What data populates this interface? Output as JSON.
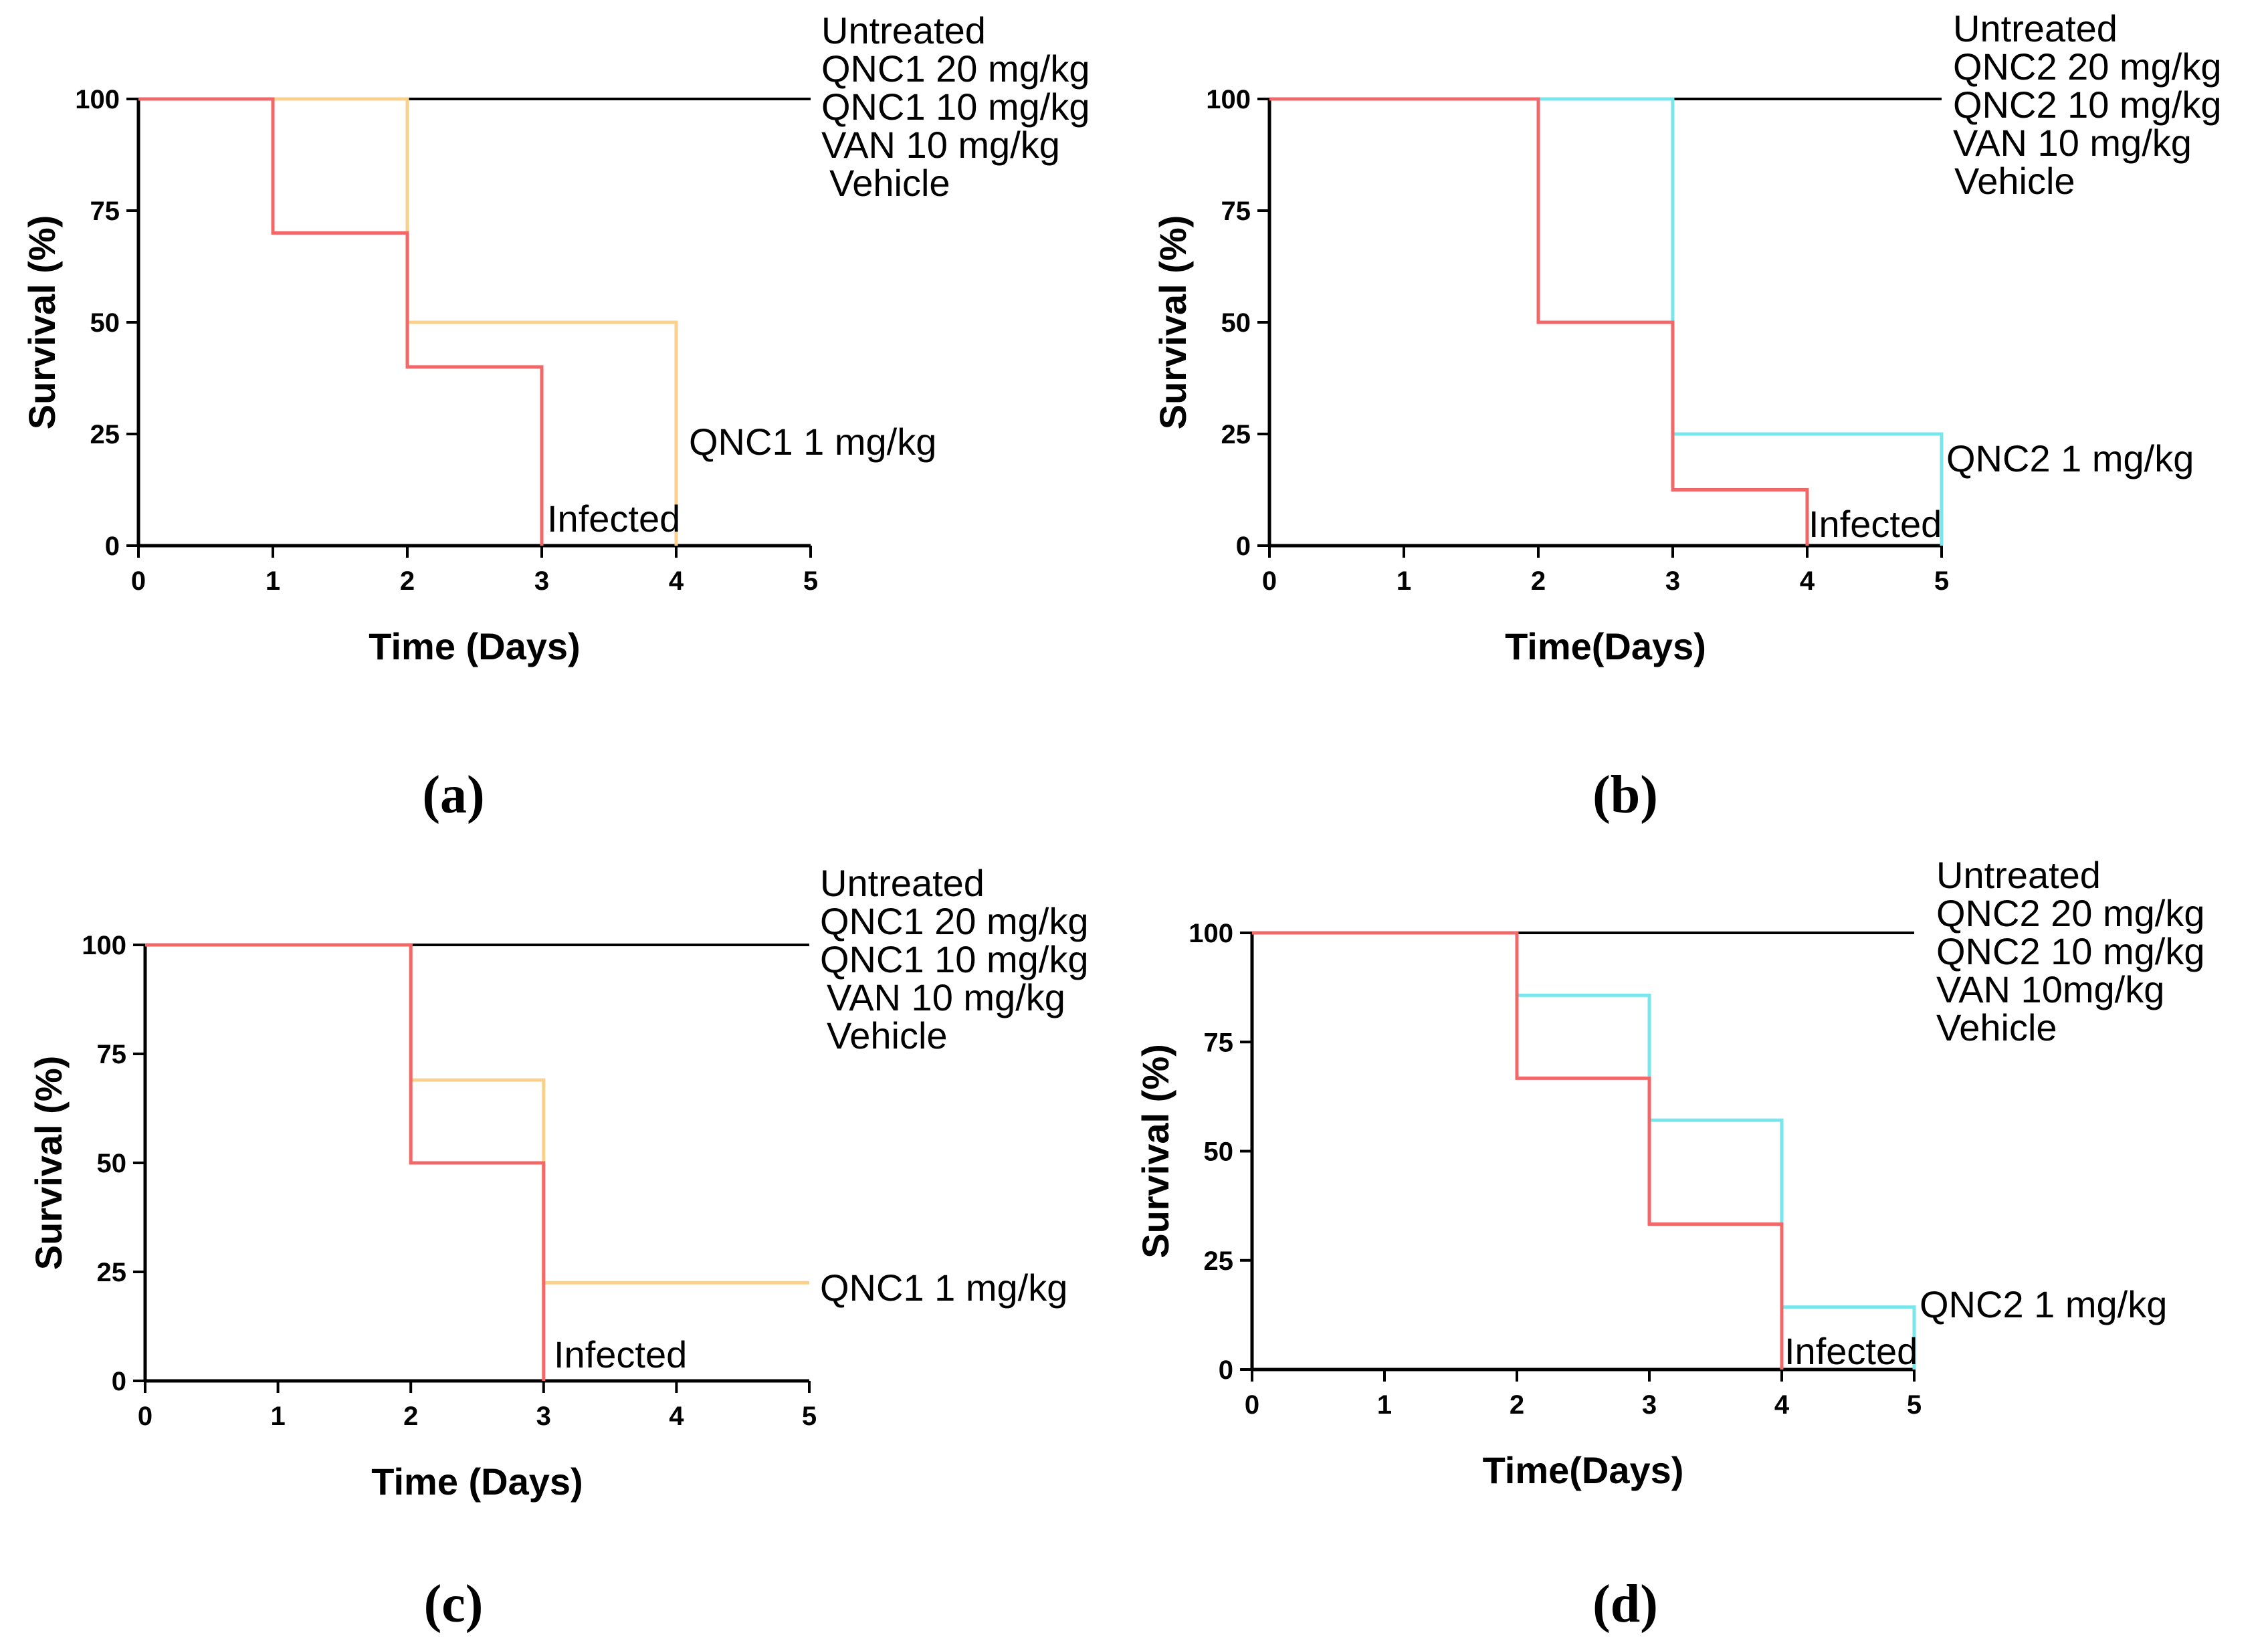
{
  "colors": {
    "axis": "#000000",
    "black_curve": "#000000",
    "infected": "#f26868",
    "qnc1_low": "#f9d08c",
    "qnc2_low": "#79e6ec"
  },
  "chart_data": [
    {
      "panel": "(a)",
      "type": "line",
      "step": true,
      "xlabel": "Time (Days)",
      "ylabel": "Survival (%)",
      "xlim": [
        0,
        5
      ],
      "ylim": [
        0,
        100
      ],
      "x_ticks": [
        "0",
        "1",
        "2",
        "3",
        "4",
        "5"
      ],
      "y_ticks": [
        "0",
        "25",
        "50",
        "75",
        "100"
      ],
      "grid": false,
      "legend": [
        "Untreated",
        "QNC1 20 mg/kg",
        "QNC1 10 mg/kg",
        "VAN   10 mg/kg",
        "Vehicle"
      ],
      "series": [
        {
          "name": "Untreated / QNC1 20 mg/kg / QNC1 10 mg/kg / VAN 10 mg/kg / Vehicle",
          "color_key": "black_curve",
          "points": [
            [
              0,
              100
            ],
            [
              5,
              100
            ]
          ]
        },
        {
          "name": "QNC1 1 mg/kg",
          "color_key": "qnc1_low",
          "points": [
            [
              0,
              100
            ],
            [
              2,
              100
            ],
            [
              2,
              50
            ],
            [
              4,
              50
            ],
            [
              4,
              0
            ]
          ]
        },
        {
          "name": "Infected",
          "color_key": "infected",
          "points": [
            [
              0,
              100
            ],
            [
              1,
              100
            ],
            [
              1,
              70
            ],
            [
              2,
              70
            ],
            [
              2,
              40
            ],
            [
              3,
              40
            ],
            [
              3,
              0
            ]
          ]
        }
      ],
      "annotations": [
        "QNC1 1 mg/kg",
        "Infected"
      ]
    },
    {
      "panel": "(b)",
      "type": "line",
      "step": true,
      "xlabel": "Time(Days)",
      "ylabel": "Survival (%)",
      "xlim": [
        0,
        5
      ],
      "ylim": [
        0,
        100
      ],
      "x_ticks": [
        "0",
        "1",
        "2",
        "3",
        "4",
        "5"
      ],
      "y_ticks": [
        "0",
        "25",
        "50",
        "75",
        "100"
      ],
      "grid": false,
      "legend": [
        "Untreated",
        "QNC2 20 mg/kg",
        "QNC2 10 mg/kg",
        "VAN     10 mg/kg",
        "Vehicle"
      ],
      "series": [
        {
          "name": "Untreated / QNC2 20 mg/kg / QNC2 10 mg/kg / VAN 10 mg/kg / Vehicle",
          "color_key": "black_curve",
          "points": [
            [
              0,
              100
            ],
            [
              5,
              100
            ]
          ]
        },
        {
          "name": "QNC2 1 mg/kg",
          "color_key": "qnc2_low",
          "points": [
            [
              0,
              100
            ],
            [
              3,
              100
            ],
            [
              3,
              25
            ],
            [
              5,
              25
            ],
            [
              5,
              0
            ]
          ]
        },
        {
          "name": "Infected",
          "color_key": "infected",
          "points": [
            [
              0,
              100
            ],
            [
              2,
              100
            ],
            [
              2,
              50
            ],
            [
              3,
              50
            ],
            [
              3,
              12.5
            ],
            [
              4,
              12.5
            ],
            [
              4,
              0
            ]
          ]
        }
      ],
      "annotations": [
        "QNC2 1 mg/kg",
        "Infected"
      ]
    },
    {
      "panel": "(c)",
      "type": "line",
      "step": true,
      "xlabel": "Time (Days)",
      "ylabel": "Survival (%)",
      "xlim": [
        0,
        5
      ],
      "ylim": [
        0,
        100
      ],
      "x_ticks": [
        "0",
        "1",
        "2",
        "3",
        "4",
        "5"
      ],
      "y_ticks": [
        "0",
        "25",
        "50",
        "75",
        "100"
      ],
      "grid": false,
      "legend": [
        "Untreated",
        "QNC1 20 mg/kg",
        "QNC1 10 mg/kg",
        "VAN   10 mg/kg",
        "Vehicle"
      ],
      "series": [
        {
          "name": "Untreated / QNC1 20 mg/kg / QNC1 10 mg/kg / VAN 10 mg/kg / Vehicle",
          "color_key": "black_curve",
          "points": [
            [
              0,
              100
            ],
            [
              5,
              100
            ]
          ]
        },
        {
          "name": "QNC1 1 mg/kg",
          "color_key": "qnc1_low",
          "points": [
            [
              0,
              100
            ],
            [
              2,
              100
            ],
            [
              2,
              69
            ],
            [
              3,
              69
            ],
            [
              3,
              22.5
            ],
            [
              5,
              22.5
            ]
          ]
        },
        {
          "name": "Infected",
          "color_key": "infected",
          "points": [
            [
              0,
              100
            ],
            [
              2,
              100
            ],
            [
              2,
              50
            ],
            [
              3,
              50
            ],
            [
              3,
              0
            ]
          ]
        }
      ],
      "annotations": [
        "QNC1 1 mg/kg",
        "Infected"
      ]
    },
    {
      "panel": "(d)",
      "type": "line",
      "step": true,
      "xlabel": "Time(Days)",
      "ylabel": "Survival (%)",
      "xlim": [
        0,
        5
      ],
      "ylim": [
        0,
        100
      ],
      "x_ticks": [
        "0",
        "1",
        "2",
        "3",
        "4",
        "5"
      ],
      "y_ticks": [
        "0",
        "25",
        "50",
        "75",
        "100"
      ],
      "grid": false,
      "legend": [
        "Untreated",
        "QNC2 20 mg/kg",
        "QNC2 10 mg/kg",
        "VAN     10mg/kg",
        "Vehicle"
      ],
      "series": [
        {
          "name": "Untreated / QNC2 20 mg/kg / QNC2 10 mg/kg / VAN 10mg/kg / Vehicle",
          "color_key": "black_curve",
          "points": [
            [
              0,
              100
            ],
            [
              5,
              100
            ]
          ]
        },
        {
          "name": "QNC2 1 mg/kg",
          "color_key": "qnc2_low",
          "points": [
            [
              0,
              100
            ],
            [
              2,
              100
            ],
            [
              2,
              85.7
            ],
            [
              3,
              85.7
            ],
            [
              3,
              57.1
            ],
            [
              4,
              57.1
            ],
            [
              4,
              14.3
            ],
            [
              5,
              14.3
            ],
            [
              5,
              0
            ]
          ]
        },
        {
          "name": "Infected",
          "color_key": "infected",
          "points": [
            [
              0,
              100
            ],
            [
              2,
              100
            ],
            [
              2,
              66.7
            ],
            [
              3,
              66.7
            ],
            [
              3,
              33.3
            ],
            [
              4,
              33.3
            ],
            [
              4,
              0
            ]
          ]
        }
      ],
      "annotations": [
        "QNC2 1 mg/kg",
        "Infected"
      ]
    }
  ]
}
